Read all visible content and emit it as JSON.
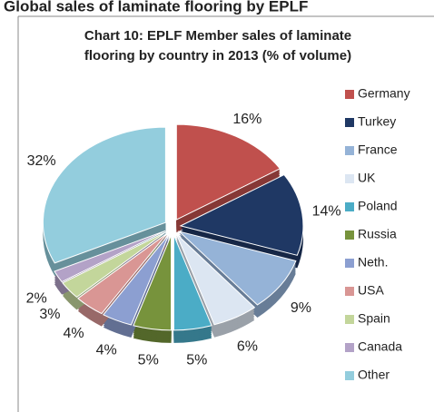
{
  "header": {
    "title": "Global sales of laminate flooring by EPLF"
  },
  "chart_data": {
    "type": "pie",
    "title": "Chart 10: EPLF Member sales of laminate flooring by country in 2013 (% of volume)",
    "categories": [
      "Germany",
      "Turkey",
      "France",
      "UK",
      "Poland",
      "Russia",
      "Neth.",
      "USA",
      "Spain",
      "Canada",
      "Other"
    ],
    "values": [
      16,
      14,
      9,
      6,
      5,
      5,
      4,
      4,
      3,
      2,
      32
    ],
    "value_labels": [
      "16%",
      "14%",
      "9%",
      "6%",
      "5%",
      "5%",
      "4%",
      "4%",
      "3%",
      "2%",
      "32%"
    ],
    "colors": [
      "#c0504d",
      "#1f3864",
      "#95b3d7",
      "#dce6f2",
      "#4bacc6",
      "#77933c",
      "#8c9fd1",
      "#d99694",
      "#c3d69b",
      "#b3a2c7",
      "#93cddd"
    ],
    "legend": "right"
  }
}
